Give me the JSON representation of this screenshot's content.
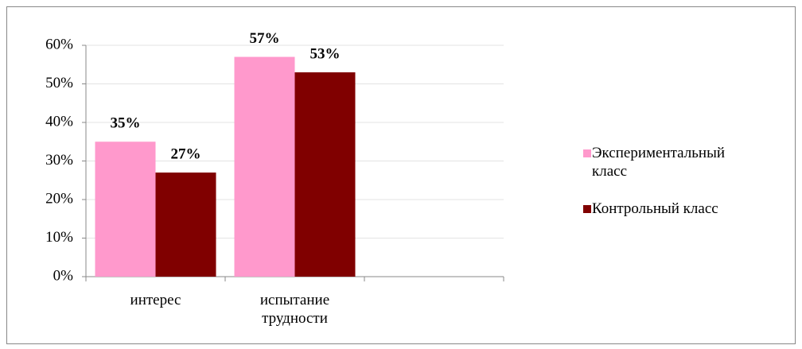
{
  "chart_data": {
    "type": "bar",
    "categories": [
      "интерес",
      "испытание трудности",
      null
    ],
    "series": [
      {
        "name": "Экспериментальный класс",
        "color": "#ff99cc",
        "values": [
          35,
          57,
          null
        ],
        "value_labels": [
          "35%",
          "57%",
          null
        ]
      },
      {
        "name": "Контрольный класс",
        "color": "#800000",
        "values": [
          27,
          53,
          null
        ],
        "value_labels": [
          "27%",
          "53%",
          null
        ]
      }
    ],
    "ylim": [
      0,
      60
    ],
    "yticks": [
      {
        "value": 0,
        "label": "0%"
      },
      {
        "value": 10,
        "label": "10%"
      },
      {
        "value": 20,
        "label": "20%"
      },
      {
        "value": 30,
        "label": "30%"
      },
      {
        "value": 40,
        "label": "40%"
      },
      {
        "value": 50,
        "label": "50%"
      },
      {
        "value": 60,
        "label": "60%"
      }
    ],
    "grid": true,
    "legend": "right"
  }
}
